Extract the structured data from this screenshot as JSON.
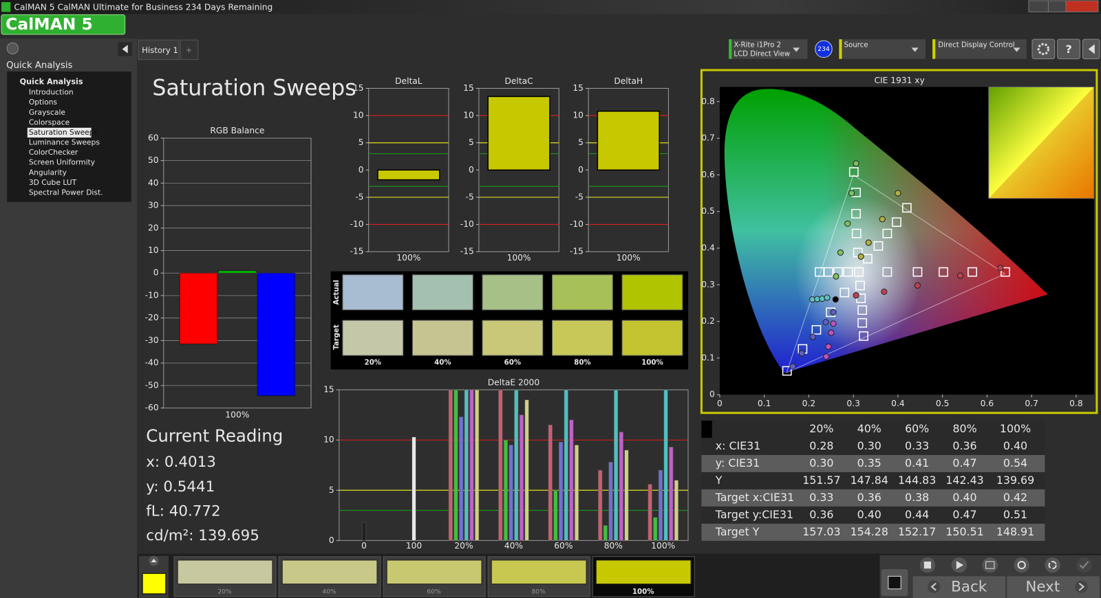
{
  "window": {
    "title": "CalMAN 5 CalMAN Ultimate for Business 234 Days Remaining",
    "logo": "CalMAN 5"
  },
  "sidebar": {
    "header": "Quick Analysis",
    "group": "Quick Analysis",
    "items": [
      "Introduction",
      "Options",
      "Grayscale",
      "Colorspace",
      "Saturation Sweeps",
      "Luminance Sweeps",
      "ColorChecker",
      "Screen Uniformity",
      "Angularity",
      "3D Cube LUT",
      "Spectral Power Dist."
    ],
    "selected": 4
  },
  "tabs": [
    "History 1",
    "+"
  ],
  "toolbar": {
    "meter": "X-Rite i1Pro 2",
    "meter_mode": "LCD Direct View",
    "badge": "234",
    "source": "Source",
    "display": "Direct Display Control",
    "help": "?"
  },
  "page_title": "Saturation Sweeps",
  "rgb_balance": {
    "type": "bar",
    "title": "RGB Balance",
    "categories": [
      "100%"
    ],
    "grid": true,
    "series": [
      {
        "color": "#ff0000",
        "values": [
          -31.5
        ]
      },
      {
        "color": "#00c800",
        "values": [
          1
        ]
      },
      {
        "color": "#0000ff",
        "values": [
          -54.5
        ]
      }
    ],
    "ylim": [
      -60,
      60
    ],
    "yticks": [
      -60,
      -50,
      -40,
      -30,
      -20,
      -10,
      0,
      10,
      20,
      30,
      40,
      50,
      60
    ]
  },
  "delta_charts": [
    {
      "type": "bar",
      "title": "DeltaL",
      "categories": [
        "100%"
      ],
      "values": [
        -1.8
      ],
      "color": "#c8c800",
      "grid": false,
      "ylim": [
        -15,
        15
      ],
      "yticks": [
        -15,
        -10,
        -5,
        0,
        5,
        10,
        15
      ],
      "ref_lines": [
        {
          "value": 10,
          "color": "#d02020"
        },
        {
          "value": -10,
          "color": "#d02020"
        },
        {
          "value": 5,
          "color": "#e0e020"
        },
        {
          "value": -5,
          "color": "#e0e020"
        },
        {
          "value": 3,
          "color": "#209020"
        },
        {
          "value": -3,
          "color": "#209020"
        }
      ]
    },
    {
      "type": "bar",
      "title": "DeltaC",
      "categories": [
        "100%"
      ],
      "values": [
        13.5
      ],
      "color": "#c8c800",
      "grid": false,
      "ylim": [
        -15,
        15
      ],
      "yticks": [
        -15,
        -10,
        -5,
        0,
        5,
        10,
        15
      ],
      "ref_lines": [
        {
          "value": 10,
          "color": "#d02020"
        },
        {
          "value": -10,
          "color": "#d02020"
        },
        {
          "value": 5,
          "color": "#e0e020"
        },
        {
          "value": -5,
          "color": "#e0e020"
        },
        {
          "value": 3,
          "color": "#209020"
        },
        {
          "value": -3,
          "color": "#209020"
        }
      ]
    },
    {
      "type": "bar",
      "title": "DeltaH",
      "categories": [
        "100%"
      ],
      "values": [
        10.8
      ],
      "color": "#c8c800",
      "grid": false,
      "ylim": [
        -15,
        15
      ],
      "yticks": [
        -15,
        -10,
        -5,
        0,
        5,
        10,
        15
      ],
      "ref_lines": [
        {
          "value": 10,
          "color": "#d02020"
        },
        {
          "value": -10,
          "color": "#d02020"
        },
        {
          "value": 5,
          "color": "#e0e020"
        },
        {
          "value": -5,
          "color": "#e0e020"
        },
        {
          "value": 3,
          "color": "#209020"
        },
        {
          "value": -3,
          "color": "#209020"
        }
      ]
    }
  ],
  "swatches": {
    "columns": [
      "20%",
      "40%",
      "60%",
      "80%",
      "100%"
    ],
    "rows": [
      {
        "label": "Actual",
        "colors": [
          "#a8bcd2",
          "#a4c0b0",
          "#a6c088",
          "#a8c058",
          "#b0c400"
        ]
      },
      {
        "label": "Target",
        "colors": [
          "#c4c8a8",
          "#c6c490",
          "#c8c878",
          "#c8c858",
          "#c4c430"
        ]
      }
    ]
  },
  "delta_e": {
    "type": "bar",
    "title": "DeltaE 2000",
    "categories": [
      "0",
      "100",
      "20%",
      "40%",
      "60%",
      "80%",
      "100%"
    ],
    "ylim": [
      0,
      15
    ],
    "yticks": [
      0,
      5,
      10,
      15
    ],
    "ref_lines": [
      {
        "value": 10,
        "color": "#d02020"
      },
      {
        "value": 5,
        "color": "#e0e020"
      },
      {
        "value": 3,
        "color": "#209020"
      }
    ],
    "series": [
      {
        "color": "#202020",
        "values": [
          1.8,
          null,
          null,
          null,
          null,
          null,
          null
        ]
      },
      {
        "color": "#e8e8e8",
        "values": [
          null,
          10.3,
          null,
          null,
          null,
          null,
          null
        ]
      },
      {
        "color": "#c86070",
        "values": [
          null,
          null,
          15,
          15,
          11.5,
          7,
          5.6
        ]
      },
      {
        "color": "#40c040",
        "values": [
          null,
          null,
          15,
          10,
          5,
          1.5,
          2.3
        ]
      },
      {
        "color": "#7070d8",
        "values": [
          null,
          null,
          12.3,
          9.5,
          9.8,
          7.8,
          7
        ]
      },
      {
        "color": "#50c0c0",
        "values": [
          null,
          null,
          15,
          15,
          15,
          15,
          15
        ]
      },
      {
        "color": "#c060c8",
        "values": [
          null,
          null,
          15,
          12.5,
          12,
          10.8,
          9.3
        ]
      },
      {
        "color": "#d0d080",
        "values": [
          null,
          null,
          15,
          14,
          9.5,
          9,
          6
        ]
      }
    ]
  },
  "current_reading": {
    "title": "Current Reading",
    "lines": [
      "x: 0.4013",
      "y: 0.5441",
      "fL: 40.772",
      "cd/m²: 139.695"
    ]
  },
  "cie": {
    "type": "scatter",
    "title": "CIE 1931 xy",
    "xlim": [
      0,
      0.84
    ],
    "ylim": [
      0,
      0.84
    ],
    "xticks": [
      0,
      0.1,
      0.2,
      0.3,
      0.4,
      0.5,
      0.6,
      0.7,
      0.8
    ],
    "yticks": [
      0,
      0.1,
      0.2,
      0.3,
      0.4,
      0.5,
      0.6,
      0.7,
      0.8
    ],
    "gamut": {
      "x": [
        0.64,
        0.3,
        0.15
      ],
      "y": [
        0.33,
        0.6,
        0.06
      ]
    },
    "series": [
      {
        "marker": "square",
        "color": "#ffffff",
        "x": [
          0.301,
          0.306,
          0.306,
          0.307,
          0.31,
          0.641,
          0.567,
          0.502,
          0.444,
          0.376,
          0.151,
          0.186,
          0.217,
          0.249,
          0.28,
          0.224,
          0.244,
          0.266,
          0.288,
          0.42,
          0.397,
          0.376,
          0.356,
          0.332,
          0.323,
          0.32,
          0.32,
          0.317,
          0.315,
          0.312
        ],
        "y": [
          0.608,
          0.552,
          0.494,
          0.44,
          0.388,
          0.335,
          0.335,
          0.335,
          0.335,
          0.335,
          0.065,
          0.125,
          0.177,
          0.225,
          0.279,
          0.335,
          0.335,
          0.335,
          0.335,
          0.51,
          0.471,
          0.44,
          0.406,
          0.371,
          0.16,
          0.196,
          0.231,
          0.263,
          0.298,
          0.335
        ]
      },
      {
        "marker": "circle",
        "color": "#80c060",
        "x": [
          0.306,
          0.296,
          0.287,
          0.271,
          0.261
        ],
        "y": [
          0.631,
          0.55,
          0.467,
          0.388,
          0.323
        ]
      },
      {
        "marker": "circle",
        "color": "#b0b040",
        "x": [
          0.4,
          0.365,
          0.334,
          0.317
        ],
        "y": [
          0.55,
          0.479,
          0.415,
          0.377
        ]
      },
      {
        "marker": "circle",
        "color": "#c04050",
        "x": [
          0.63,
          0.54,
          0.444,
          0.369,
          0.306
        ],
        "y": [
          0.346,
          0.325,
          0.298,
          0.281,
          0.271
        ]
      },
      {
        "marker": "circle",
        "color": "#60c0c0",
        "x": [
          0.208,
          0.219,
          0.23,
          0.241
        ],
        "y": [
          0.26,
          0.261,
          0.262,
          0.265
        ]
      },
      {
        "marker": "circle",
        "color": "#6060c0",
        "x": [
          0.164,
          0.184,
          0.209,
          0.238,
          0.255
        ],
        "y": [
          0.077,
          0.113,
          0.158,
          0.198,
          0.225
        ]
      },
      {
        "marker": "circle",
        "color": "#c050c0",
        "x": [
          0.239,
          0.244,
          0.25,
          0.255
        ],
        "y": [
          0.104,
          0.131,
          0.169,
          0.194
        ]
      },
      {
        "marker": "circle",
        "color": "#000000",
        "x": [
          0.26
        ],
        "y": [
          0.26
        ]
      }
    ]
  },
  "table": {
    "columns": [
      "20%",
      "40%",
      "60%",
      "80%",
      "100%"
    ],
    "rows": [
      {
        "label": "x: CIE31",
        "cells": [
          "0.28",
          "0.30",
          "0.33",
          "0.36",
          "0.40"
        ]
      },
      {
        "label": "y: CIE31",
        "cells": [
          "0.30",
          "0.35",
          "0.41",
          "0.47",
          "0.54"
        ]
      },
      {
        "label": "Y",
        "cells": [
          "151.57",
          "147.84",
          "144.83",
          "142.43",
          "139.69"
        ]
      },
      {
        "label": "Target x:CIE31",
        "cells": [
          "0.33",
          "0.36",
          "0.38",
          "0.40",
          "0.42"
        ]
      },
      {
        "label": "Target y:CIE31",
        "cells": [
          "0.36",
          "0.40",
          "0.44",
          "0.47",
          "0.51"
        ]
      },
      {
        "label": "Target Y",
        "cells": [
          "157.03",
          "154.28",
          "152.17",
          "150.51",
          "148.91"
        ]
      }
    ]
  },
  "bottom": {
    "current_color": "#ffff00",
    "selected": 4,
    "swatches": [
      {
        "label": "20%",
        "color": "#c8c8a0"
      },
      {
        "label": "40%",
        "color": "#c8c888"
      },
      {
        "label": "60%",
        "color": "#c8c870"
      },
      {
        "label": "80%",
        "color": "#c8c850"
      },
      {
        "label": "100%",
        "color": "#c8c800"
      }
    ]
  },
  "buttons": {
    "back": "Back",
    "next": "Next"
  }
}
